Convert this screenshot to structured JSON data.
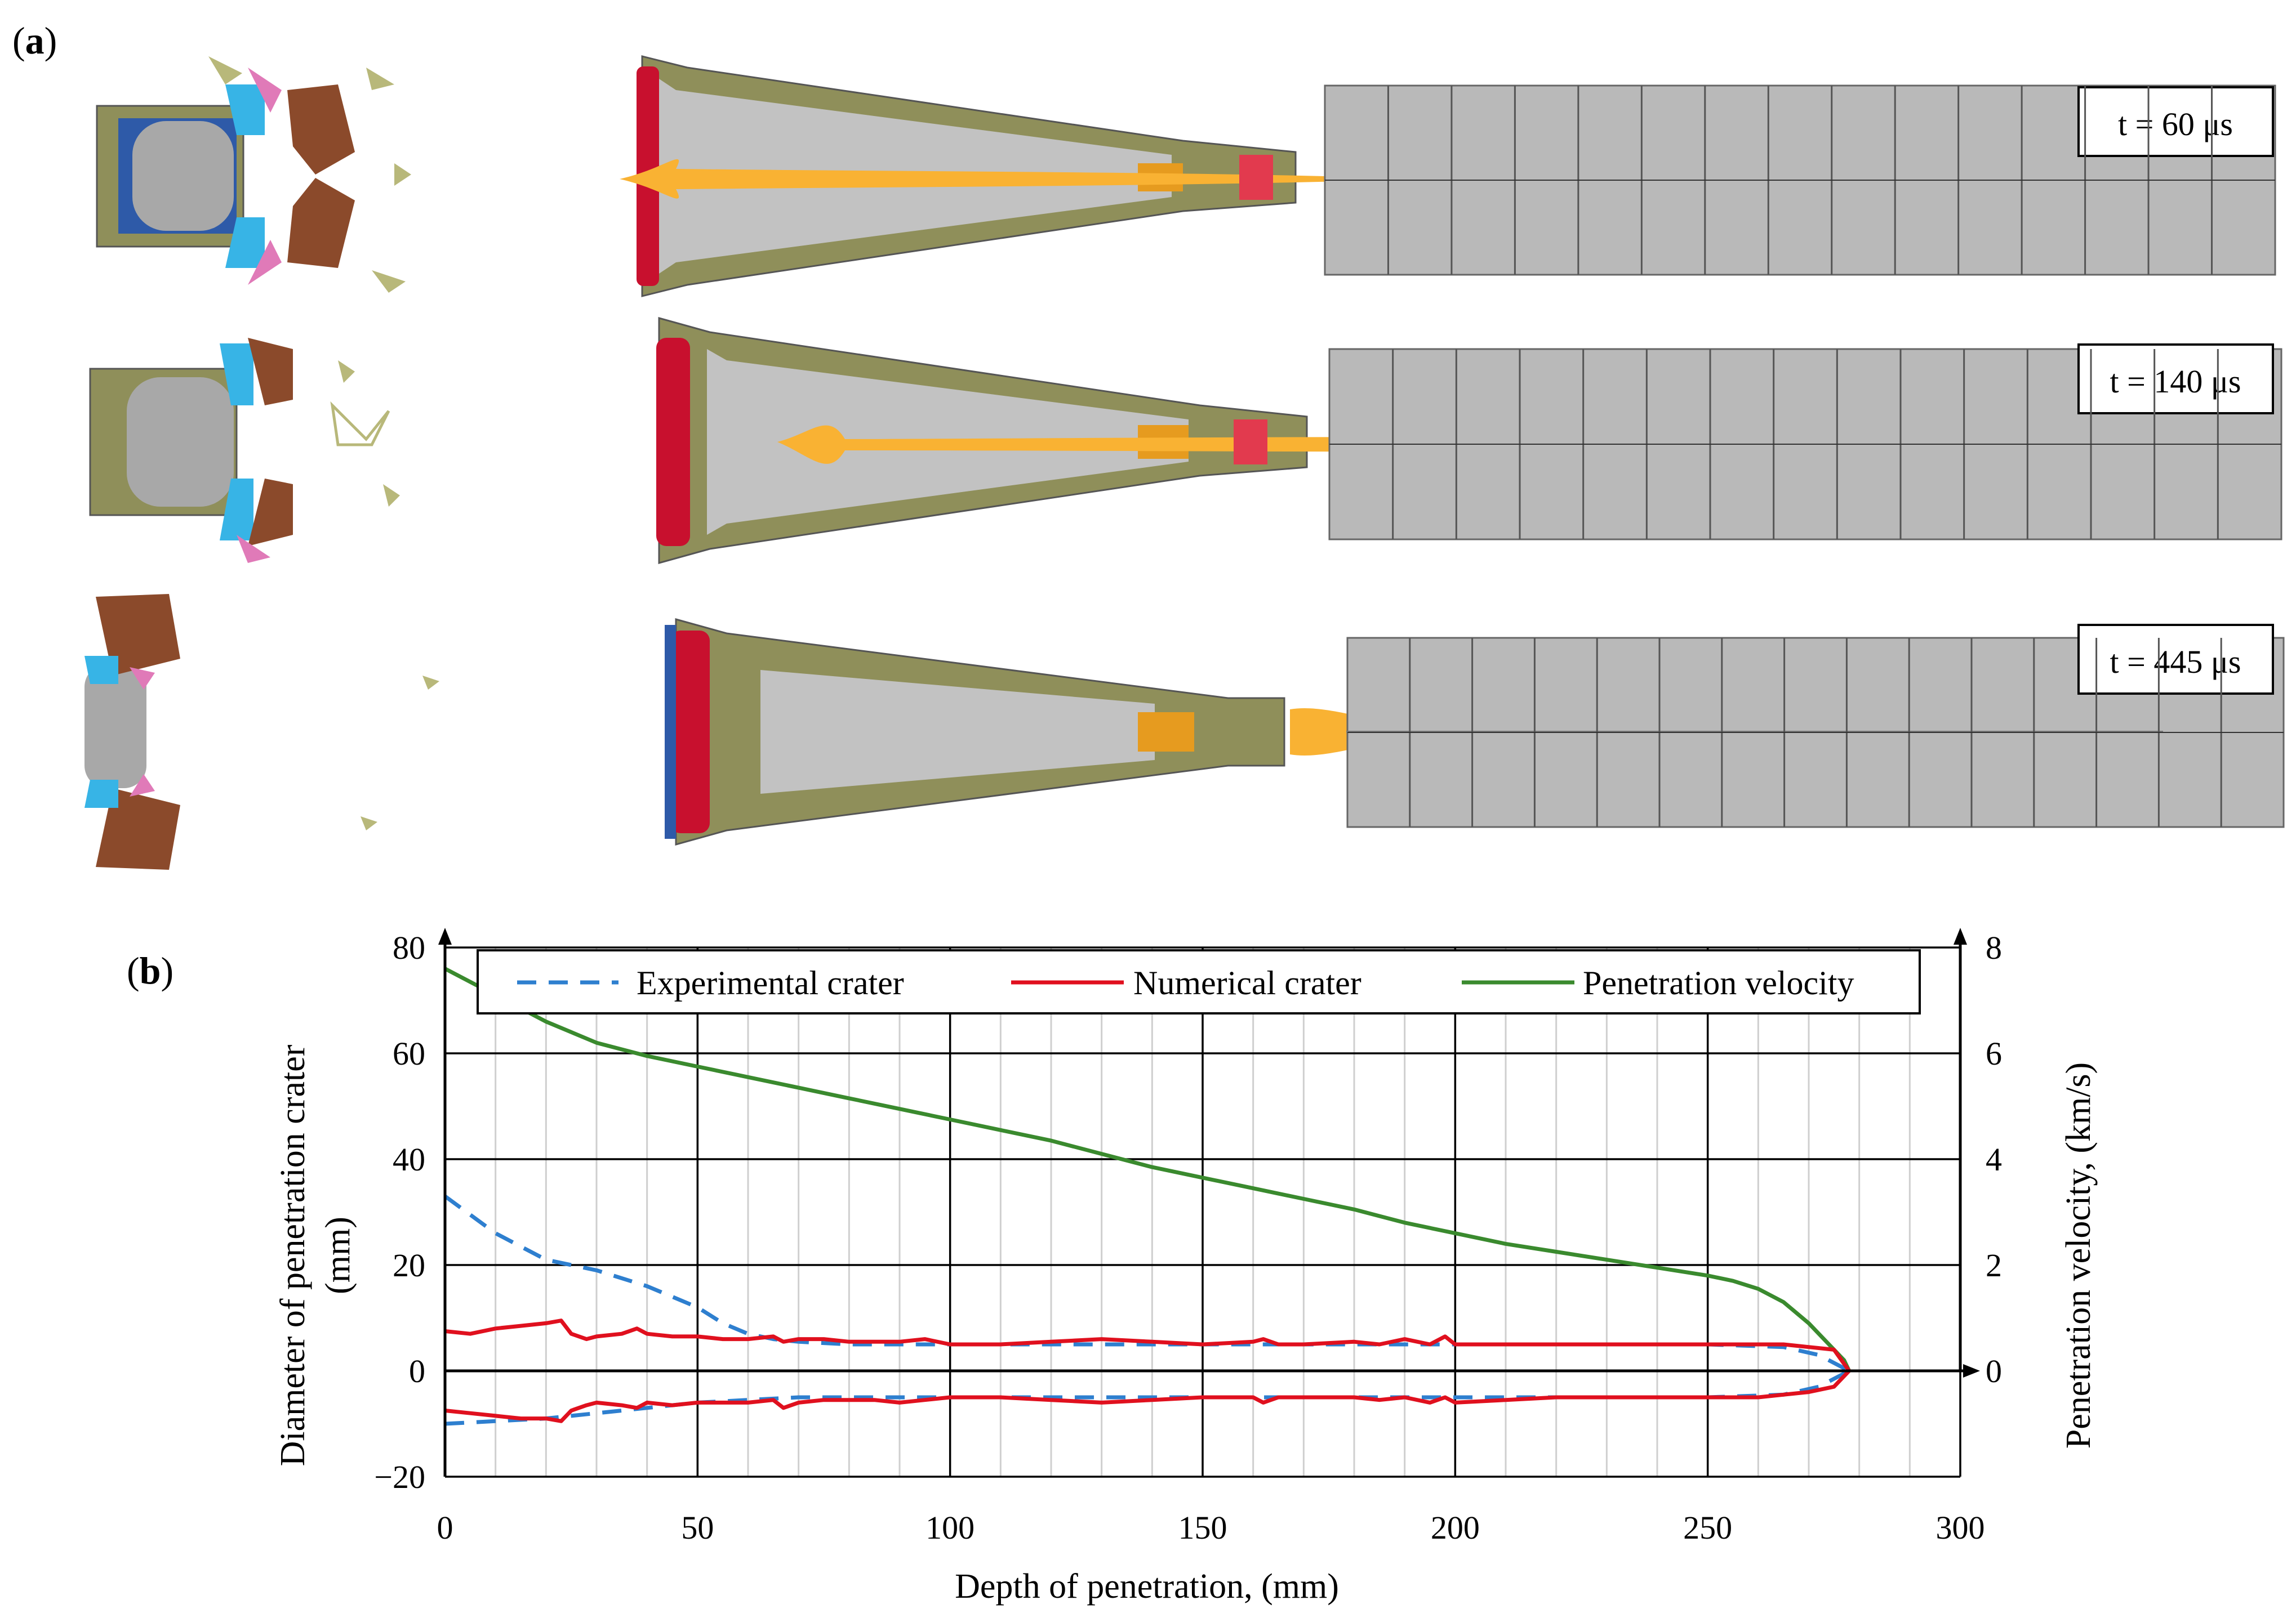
{
  "panel_a": {
    "label_open": "(",
    "label_letter": "a",
    "label_close": ")",
    "frames": [
      {
        "time_label": "t = 60 μs"
      },
      {
        "time_label": "t = 140 μs"
      },
      {
        "time_label": "t = 445 μs"
      }
    ],
    "colors": {
      "jet": "#f9b233",
      "target": "#b9b9b9",
      "liner": "#9b9b9b",
      "case": "#8f8f5a",
      "seal": "#c8102e",
      "cap": "#2e5aa8",
      "fragment_brown": "#8b4a2b",
      "fragment_cyan": "#37b4e6",
      "fragment_pink": "#e07ab8"
    }
  },
  "panel_b": {
    "label_open": "(",
    "label_letter": "b",
    "label_close": ")"
  },
  "chart_data": {
    "type": "line",
    "xlabel": "Depth of penetration, (mm)",
    "ylabel_left_line1": "Diameter of penetration crater",
    "ylabel_left_line2": "(mm)",
    "ylabel_right": "Penetration velocity, (km/s)",
    "xlim": [
      0,
      300
    ],
    "ylim_left": [
      -20,
      80
    ],
    "ylim_right": [
      -2,
      8
    ],
    "x_ticks": [
      "0",
      "50",
      "100",
      "150",
      "200",
      "250",
      "300"
    ],
    "y_left_ticks": [
      "−20",
      "0",
      "20",
      "40",
      "60",
      "80"
    ],
    "y_right_ticks": [
      "0",
      "2",
      "4",
      "6",
      "8"
    ],
    "grid": true,
    "legend_position": "top",
    "series": [
      {
        "name": "Experimental crater",
        "color": "#2e7fcf",
        "style": "dashed",
        "axis": "left",
        "upper": {
          "x": [
            0,
            10,
            20,
            30,
            40,
            50,
            55,
            60,
            65,
            70,
            80,
            90,
            100,
            120,
            150,
            180,
            200,
            230,
            250,
            265,
            272,
            278
          ],
          "y": [
            33,
            26,
            21,
            19,
            16,
            12,
            9,
            7,
            6,
            5.5,
            5,
            5,
            5,
            5,
            5,
            5,
            5,
            5,
            5,
            4.5,
            3,
            0
          ]
        },
        "lower": {
          "x": [
            0,
            10,
            20,
            30,
            40,
            50,
            60,
            70,
            80,
            100,
            120,
            150,
            180,
            200,
            230,
            250,
            265,
            272,
            278
          ],
          "y": [
            -10,
            -9.5,
            -9,
            -8,
            -7,
            -6,
            -5.5,
            -5,
            -5,
            -5,
            -5,
            -5,
            -5,
            -5,
            -5,
            -5,
            -4.5,
            -3,
            0
          ]
        }
      },
      {
        "name": "Numerical crater",
        "color": "#e0101e",
        "style": "solid",
        "axis": "left",
        "upper": {
          "x": [
            0,
            5,
            10,
            15,
            20,
            23,
            25,
            28,
            30,
            35,
            38,
            40,
            45,
            50,
            55,
            60,
            65,
            67,
            70,
            75,
            80,
            85,
            90,
            95,
            100,
            110,
            120,
            130,
            140,
            150,
            160,
            162,
            165,
            170,
            180,
            185,
            190,
            195,
            198,
            200,
            210,
            220,
            230,
            240,
            250,
            260,
            265,
            270,
            275,
            278
          ],
          "y": [
            7.5,
            7,
            8,
            8.5,
            9,
            9.5,
            7,
            6,
            6.5,
            7,
            8,
            7,
            6.5,
            6.5,
            6,
            6,
            6.5,
            5.5,
            6,
            6,
            5.5,
            5.5,
            5.5,
            6,
            5,
            5,
            5.5,
            6,
            5.5,
            5,
            5.5,
            6,
            5,
            5,
            5.5,
            5,
            6,
            5,
            6.5,
            5,
            5,
            5,
            5,
            5,
            5,
            5,
            5,
            4.5,
            4,
            0
          ]
        },
        "lower": {
          "x": [
            0,
            5,
            10,
            15,
            20,
            23,
            25,
            28,
            30,
            35,
            38,
            40,
            45,
            50,
            55,
            60,
            65,
            67,
            70,
            75,
            80,
            85,
            90,
            95,
            100,
            110,
            120,
            130,
            140,
            150,
            160,
            162,
            165,
            170,
            180,
            185,
            190,
            195,
            198,
            200,
            210,
            220,
            230,
            240,
            250,
            260,
            265,
            270,
            275,
            278
          ],
          "y": [
            -7.5,
            -8,
            -8.5,
            -9,
            -9,
            -9.5,
            -7.5,
            -6.5,
            -6,
            -6.5,
            -7,
            -6,
            -6.5,
            -6,
            -6,
            -6,
            -5.5,
            -7,
            -6,
            -5.5,
            -5.5,
            -5.5,
            -6,
            -5.5,
            -5,
            -5,
            -5.5,
            -6,
            -5.5,
            -5,
            -5,
            -6,
            -5,
            -5,
            -5,
            -5.5,
            -5,
            -6,
            -5,
            -6,
            -5.5,
            -5,
            -5,
            -5,
            -5,
            -5,
            -4.5,
            -4,
            -3,
            0
          ]
        }
      },
      {
        "name": "Penetration velocity",
        "color": "#3a8a2e",
        "style": "solid",
        "axis": "right",
        "x": [
          0,
          10,
          20,
          30,
          40,
          50,
          60,
          70,
          80,
          90,
          100,
          110,
          120,
          130,
          140,
          150,
          160,
          170,
          180,
          190,
          200,
          210,
          220,
          230,
          240,
          250,
          255,
          260,
          265,
          270,
          274,
          277,
          278
        ],
        "y": [
          7.6,
          7.1,
          6.6,
          6.2,
          5.95,
          5.75,
          5.55,
          5.35,
          5.15,
          4.95,
          4.75,
          4.55,
          4.35,
          4.1,
          3.85,
          3.65,
          3.45,
          3.25,
          3.05,
          2.8,
          2.6,
          2.4,
          2.25,
          2.1,
          1.95,
          1.8,
          1.7,
          1.55,
          1.3,
          0.9,
          0.5,
          0.2,
          0
        ]
      }
    ]
  }
}
